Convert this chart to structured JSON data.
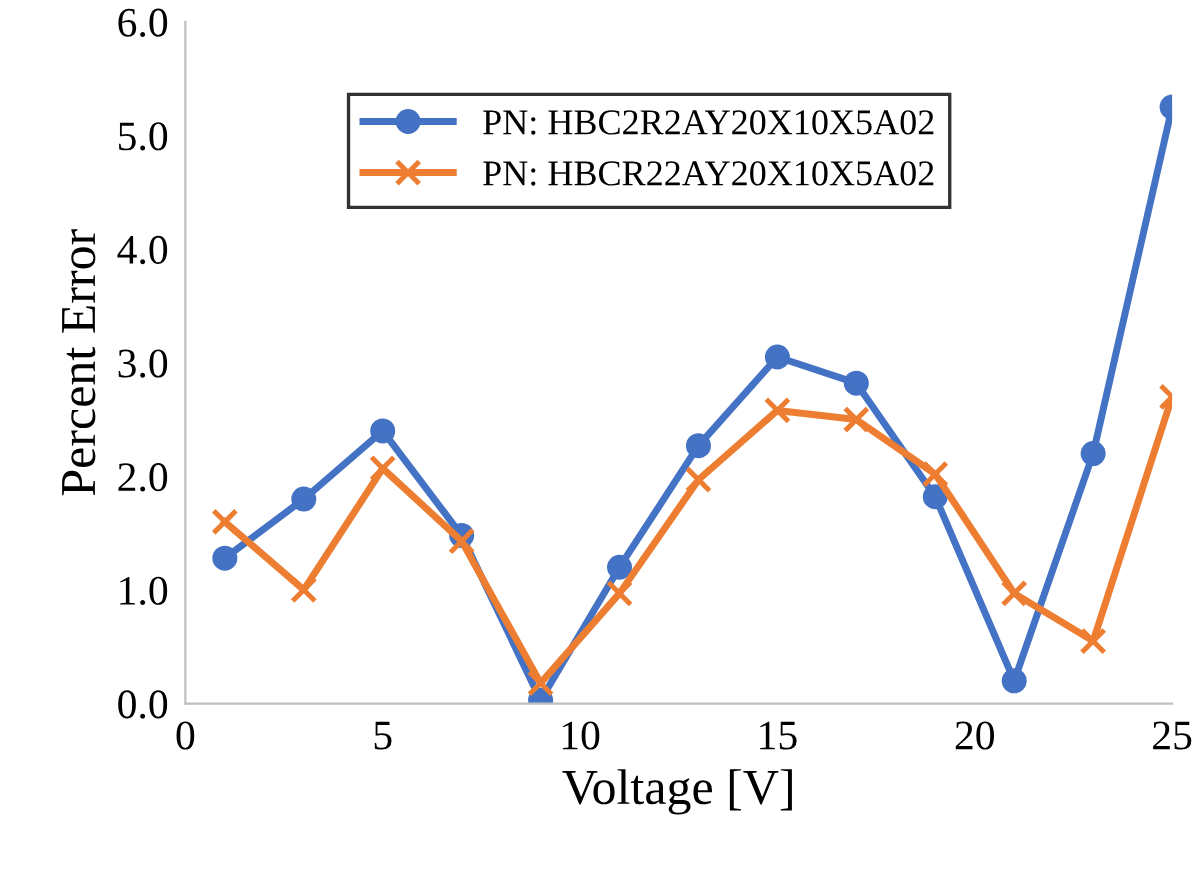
{
  "chart_data": {
    "type": "line",
    "xlabel": "Voltage [V]",
    "ylabel": "Percent Error",
    "x": [
      1,
      3,
      5,
      7,
      9,
      11,
      13,
      15,
      17,
      19,
      21,
      23,
      25
    ],
    "series": [
      {
        "name": "PN: HBC2R2AY20X10X5A02",
        "color": "#4472c4",
        "marker": "circle",
        "values": [
          1.28,
          1.8,
          2.4,
          1.48,
          0.03,
          1.2,
          2.27,
          3.05,
          2.82,
          1.82,
          0.2,
          2.2,
          5.25
        ]
      },
      {
        "name": "PN: HBCR22AY20X10X5A02",
        "color": "#ed7d31",
        "marker": "cross",
        "values": [
          1.6,
          1.0,
          2.07,
          1.43,
          0.18,
          0.97,
          1.97,
          2.58,
          2.5,
          2.02,
          0.97,
          0.55,
          2.7
        ]
      }
    ],
    "xlim": [
      0,
      25
    ],
    "xticks": [
      0,
      5,
      10,
      15,
      20,
      25
    ],
    "ylim": [
      0,
      6
    ],
    "yticks": [
      {
        "value": 0,
        "label": "0.0"
      },
      {
        "value": 1,
        "label": "1.0"
      },
      {
        "value": 2,
        "label": "2.0"
      },
      {
        "value": 3,
        "label": "3.0"
      },
      {
        "value": 4,
        "label": "4.0"
      },
      {
        "value": 5,
        "label": "5.0"
      },
      {
        "value": 6,
        "label": "6.0"
      }
    ],
    "grid": false,
    "legend": "top",
    "line_style": "solid"
  }
}
